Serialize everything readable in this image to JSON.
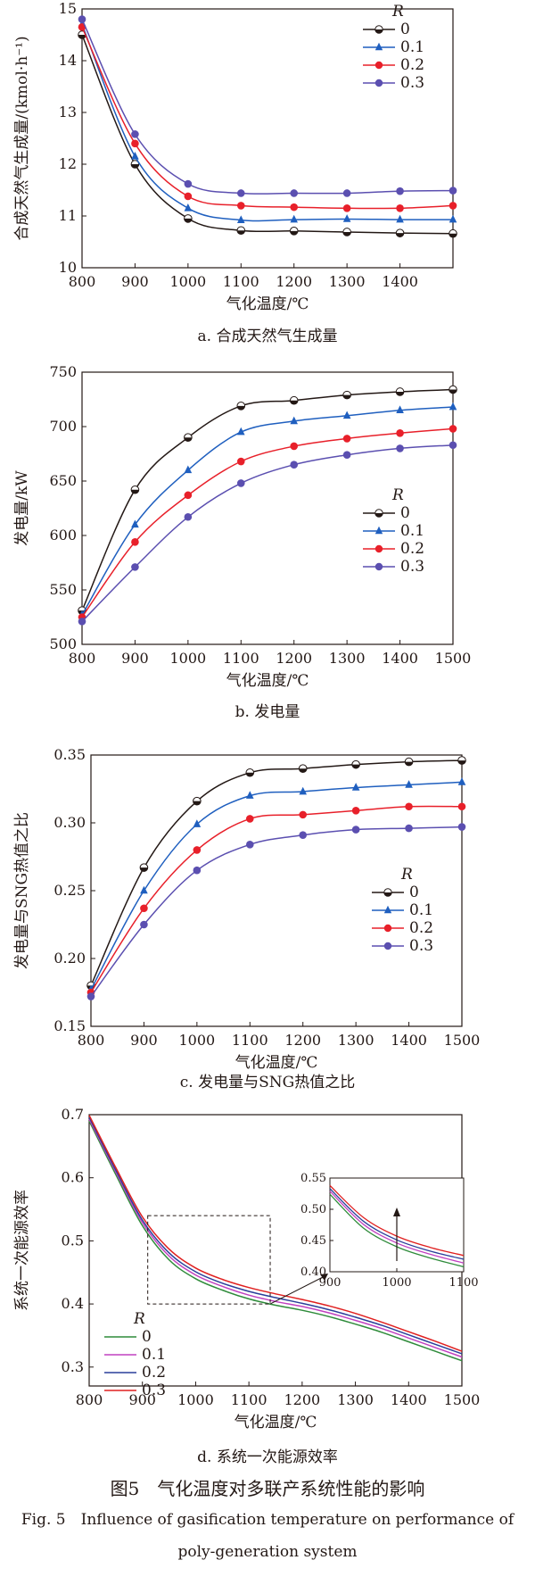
{
  "figure": {
    "title_cn": "图5　气化温度对多联产系统性能的影响",
    "title_en_line1": "Fig. 5　Influence of gasification temperature on performance of",
    "title_en_line2": "poly-generation system"
  },
  "chart_data": [
    {
      "type": "line",
      "panel": "a",
      "caption": "a. 合成天然气生成量",
      "xlabel": "气化温度/℃",
      "ylabel": "合成天然气生成量/(kmol·h⁻¹)",
      "xlim": [
        800,
        1500
      ],
      "ylim": [
        10,
        15
      ],
      "xticks": [
        800,
        900,
        1000,
        1100,
        1200,
        1300,
        1400
      ],
      "yticks": [
        10,
        11,
        12,
        13,
        14,
        15
      ],
      "legend_title": "R",
      "legend_position": "top-right",
      "x": [
        800,
        900,
        1000,
        1100,
        1200,
        1300,
        1400,
        1500
      ],
      "series": [
        {
          "name": "0",
          "marker": "half-circle",
          "color": "#231815",
          "values": [
            14.5,
            12.0,
            10.95,
            10.72,
            10.71,
            10.69,
            10.67,
            10.66
          ]
        },
        {
          "name": "0.1",
          "marker": "triangle",
          "color": "#1f5fbf",
          "values": [
            14.7,
            12.15,
            11.15,
            10.92,
            10.93,
            10.94,
            10.93,
            10.93
          ]
        },
        {
          "name": "0.2",
          "marker": "circle",
          "color": "#e8202a",
          "values": [
            14.65,
            12.4,
            11.38,
            11.2,
            11.17,
            11.15,
            11.15,
            11.2
          ]
        },
        {
          "name": "0.3",
          "marker": "circle",
          "color": "#5b4fb0",
          "values": [
            14.8,
            12.58,
            11.62,
            11.44,
            11.44,
            11.44,
            11.48,
            11.49
          ]
        }
      ]
    },
    {
      "type": "line",
      "panel": "b",
      "caption": "b. 发电量",
      "xlabel": "气化温度/℃",
      "ylabel": "发电量/kW",
      "xlim": [
        800,
        1500
      ],
      "ylim": [
        500,
        750
      ],
      "xticks": [
        800,
        900,
        1000,
        1100,
        1200,
        1300,
        1400,
        1500
      ],
      "yticks": [
        500,
        550,
        600,
        650,
        700,
        750
      ],
      "legend_title": "R",
      "legend_position": "center-right",
      "x": [
        800,
        900,
        1000,
        1100,
        1200,
        1300,
        1400,
        1500
      ],
      "series": [
        {
          "name": "0",
          "marker": "half-circle",
          "color": "#231815",
          "values": [
            531,
            642,
            690,
            719,
            724,
            729,
            732,
            734
          ]
        },
        {
          "name": "0.1",
          "marker": "triangle",
          "color": "#1f5fbf",
          "values": [
            527,
            610,
            660,
            695,
            705,
            710,
            715,
            718
          ]
        },
        {
          "name": "0.2",
          "marker": "circle",
          "color": "#e8202a",
          "values": [
            525,
            594,
            637,
            668,
            682,
            689,
            694,
            698
          ]
        },
        {
          "name": "0.3",
          "marker": "circle",
          "color": "#5b4fb0",
          "values": [
            521,
            571,
            617,
            648,
            665,
            674,
            680,
            683
          ]
        }
      ]
    },
    {
      "type": "line",
      "panel": "c",
      "caption": "c. 发电量与SNG热值之比",
      "xlabel": "气化温度/℃",
      "ylabel": "发电量与SNG热值之比",
      "xlim": [
        800,
        1500
      ],
      "ylim": [
        0.15,
        0.35
      ],
      "xticks": [
        800,
        900,
        1000,
        1100,
        1200,
        1300,
        1400,
        1500
      ],
      "yticks": [
        0.15,
        0.2,
        0.25,
        0.3,
        0.35
      ],
      "ytick_labels": [
        "0.15",
        "0.20",
        "0.25",
        "0.30",
        "0.35"
      ],
      "legend_title": "R",
      "legend_position": "bottom-right",
      "x": [
        800,
        900,
        1000,
        1100,
        1200,
        1300,
        1400,
        1500
      ],
      "series": [
        {
          "name": "0",
          "marker": "half-circle",
          "color": "#231815",
          "values": [
            0.18,
            0.267,
            0.316,
            0.337,
            0.34,
            0.343,
            0.345,
            0.346
          ]
        },
        {
          "name": "0.1",
          "marker": "triangle",
          "color": "#1f5fbf",
          "values": [
            0.177,
            0.25,
            0.299,
            0.32,
            0.323,
            0.326,
            0.328,
            0.33
          ]
        },
        {
          "name": "0.2",
          "marker": "circle",
          "color": "#e8202a",
          "values": [
            0.175,
            0.237,
            0.28,
            0.303,
            0.306,
            0.309,
            0.312,
            0.312
          ]
        },
        {
          "name": "0.3",
          "marker": "circle",
          "color": "#5b4fb0",
          "values": [
            0.172,
            0.225,
            0.265,
            0.284,
            0.291,
            0.295,
            0.296,
            0.297
          ]
        }
      ]
    },
    {
      "type": "line",
      "panel": "d",
      "caption": "d. 系统一次能源效率",
      "xlabel": "气化温度/℃",
      "ylabel": "系统一次能源效率",
      "xlim": [
        800,
        1500
      ],
      "ylim": [
        0.27,
        0.7
      ],
      "xticks": [
        800,
        900,
        1000,
        1100,
        1200,
        1300,
        1400,
        1500
      ],
      "yticks": [
        0.3,
        0.4,
        0.5,
        0.6,
        0.7
      ],
      "legend_title": "R",
      "legend_position": "bottom-left",
      "x": [
        800,
        850,
        900,
        950,
        1000,
        1050,
        1100,
        1150,
        1200,
        1250,
        1300,
        1350,
        1400,
        1450,
        1500
      ],
      "series": [
        {
          "name": "0",
          "color": "#2e8b3a",
          "values": [
            0.69,
            0.605,
            0.524,
            0.47,
            0.44,
            0.422,
            0.408,
            0.398,
            0.39,
            0.38,
            0.368,
            0.355,
            0.34,
            0.325,
            0.31
          ]
        },
        {
          "name": "0.1",
          "color": "#c040c0",
          "values": [
            0.693,
            0.609,
            0.529,
            0.476,
            0.446,
            0.428,
            0.414,
            0.404,
            0.396,
            0.386,
            0.374,
            0.361,
            0.346,
            0.331,
            0.316
          ]
        },
        {
          "name": "0.2",
          "color": "#2a3f9a",
          "values": [
            0.696,
            0.612,
            0.533,
            0.481,
            0.451,
            0.433,
            0.42,
            0.41,
            0.401,
            0.391,
            0.379,
            0.366,
            0.351,
            0.336,
            0.321
          ]
        },
        {
          "name": "0.3",
          "color": "#e02020",
          "values": [
            0.699,
            0.616,
            0.538,
            0.487,
            0.457,
            0.439,
            0.426,
            0.416,
            0.407,
            0.397,
            0.385,
            0.371,
            0.356,
            0.341,
            0.325
          ]
        }
      ],
      "inset": {
        "xlim": [
          900,
          1100
        ],
        "ylim": [
          0.4,
          0.55
        ],
        "xticks": [
          900,
          1000,
          1100
        ],
        "yticks": [
          0.4,
          0.45,
          0.5,
          0.55
        ],
        "ytick_labels": [
          "0.40",
          "0.45",
          "0.50",
          "0.55"
        ],
        "zoom_box": {
          "x": [
            910,
            1140
          ],
          "y": [
            0.4,
            0.54
          ]
        }
      }
    }
  ]
}
